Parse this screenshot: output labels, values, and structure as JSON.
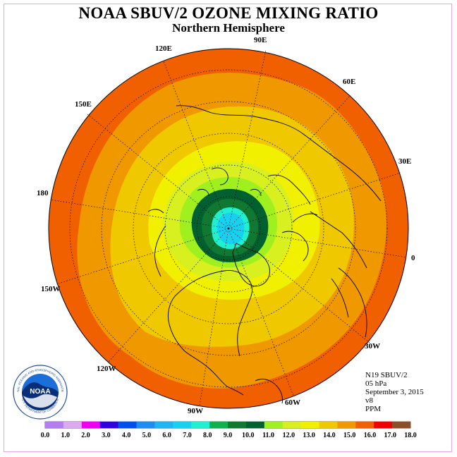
{
  "title": "NOAA SBUV/2 OZONE MIXING RATIO",
  "subtitle": "Northern Hemisphere",
  "longitude_labels": {
    "e90": "90E",
    "e60": "60E",
    "e30": "30E",
    "zero": "0",
    "e120": "120E",
    "e150": "150E",
    "d180": "180",
    "w150": "150W",
    "w120": "120W",
    "w90": "90W",
    "w60": "60W",
    "w30": "30W"
  },
  "info": {
    "satellite": "N19 SBUV/2",
    "level": "05 hPa",
    "date": "September 3, 2015",
    "version": "v8",
    "units": "PPM"
  },
  "logo": {
    "text": "NOAA",
    "ring_text": "NATIONAL OCEANIC AND ATMOSPHERIC ADMINISTRATION",
    "ring_text_bottom": "U.S. DEPARTMENT OF COMMERCE"
  },
  "colorbar": {
    "ticks": [
      "0.0",
      "1.0",
      "2.0",
      "3.0",
      "4.0",
      "5.0",
      "6.0",
      "7.0",
      "8.0",
      "9.0",
      "10.0",
      "11.0",
      "12.0",
      "13.0",
      "14.0",
      "15.0",
      "16.0",
      "17.0",
      "18.0"
    ],
    "colors": [
      "#b57ef0",
      "#dcaaf0",
      "#f000f0",
      "#3000e0",
      "#0050f0",
      "#1e8cf0",
      "#20b4f0",
      "#18d0f0",
      "#20f0d0",
      "#10b050",
      "#107830",
      "#006030",
      "#a0f020",
      "#d8f020",
      "#f0f000",
      "#f0c800",
      "#f09800",
      "#f06000",
      "#f00000",
      "#8c5028"
    ]
  },
  "map": {
    "contour_colors": {
      "outer": "#f06000",
      "band15": "#f09800",
      "band14": "#f0c800",
      "band13": "#f0f000",
      "band12": "#d8f020",
      "band11": "#a0f020",
      "band10": "#006030",
      "band9": "#107830",
      "band8": "#20f0d0",
      "center": "#18d0f0"
    }
  }
}
